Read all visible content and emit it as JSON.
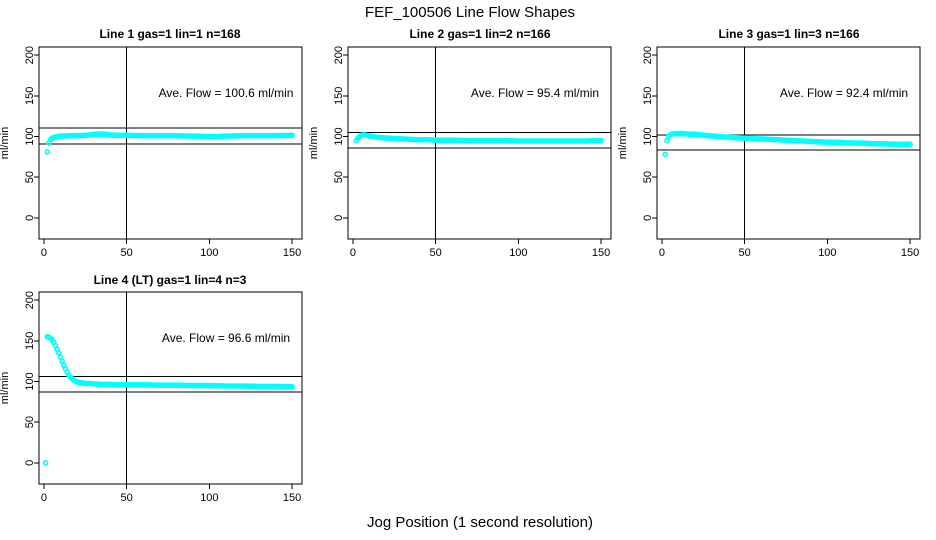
{
  "title": "FEF_100506  Line Flow Shapes",
  "xlabel": "Jog Position (1 second resolution)",
  "colors": {
    "marker": "#00FFFF",
    "axis": "#000000",
    "background": "#FFFFFF"
  },
  "chart_data": [
    {
      "type": "scatter",
      "title": "Line 1 gas=1 lin=1 n=168",
      "annotation": "Ave. Flow =  100.6  ml/min",
      "ave_flow": 100.6,
      "ylabel": "ml/min",
      "x_ticks": [
        0,
        50,
        100,
        150
      ],
      "y_ticks": [
        0,
        50,
        100,
        150,
        200
      ],
      "xlim": [
        -3,
        156
      ],
      "ylim": [
        -26,
        210
      ],
      "grid": false,
      "vline_x": 50,
      "hlines": [
        110.7,
        90.5
      ],
      "marker_color": "#00FFFF",
      "outliers": [
        [
          2,
          81
        ],
        [
          3,
          92
        ]
      ],
      "points": [
        [
          4,
          96
        ],
        [
          5,
          98
        ],
        [
          6,
          99
        ],
        [
          7,
          99.5
        ],
        [
          8,
          100
        ],
        [
          10,
          100.5
        ],
        [
          12,
          100.5
        ],
        [
          15,
          101
        ],
        [
          20,
          101
        ],
        [
          25,
          101.5
        ],
        [
          28,
          102
        ],
        [
          31,
          103
        ],
        [
          34,
          103
        ],
        [
          37,
          103
        ],
        [
          40,
          102
        ],
        [
          44,
          101.5
        ],
        [
          50,
          101.5
        ],
        [
          60,
          101
        ],
        [
          70,
          101
        ],
        [
          80,
          101
        ],
        [
          90,
          100.5
        ],
        [
          100,
          100
        ],
        [
          105,
          100
        ],
        [
          110,
          100.5
        ],
        [
          120,
          101
        ],
        [
          130,
          101
        ],
        [
          140,
          101
        ],
        [
          150,
          101.5
        ]
      ]
    },
    {
      "type": "scatter",
      "title": "Line 2 gas=1 lin=2 n=166",
      "annotation": "Ave. Flow =  95.4  ml/min",
      "ave_flow": 95.4,
      "ylabel": "ml/min",
      "x_ticks": [
        0,
        50,
        100,
        150
      ],
      "y_ticks": [
        0,
        50,
        100,
        150,
        200
      ],
      "xlim": [
        -3,
        156
      ],
      "ylim": [
        -26,
        210
      ],
      "grid": false,
      "vline_x": 50,
      "hlines": [
        104.9,
        85.9
      ],
      "marker_color": "#00FFFF",
      "outliers": [],
      "points": [
        [
          2,
          95
        ],
        [
          3,
          98
        ],
        [
          4,
          100
        ],
        [
          5,
          101.5
        ],
        [
          6,
          102
        ],
        [
          7,
          102
        ],
        [
          8,
          101.5
        ],
        [
          10,
          100.5
        ],
        [
          12,
          100
        ],
        [
          15,
          99
        ],
        [
          18,
          98.5
        ],
        [
          21,
          98
        ],
        [
          25,
          97.5
        ],
        [
          30,
          97
        ],
        [
          35,
          96.5
        ],
        [
          40,
          96
        ],
        [
          45,
          96
        ],
        [
          50,
          95.5
        ],
        [
          60,
          95.5
        ],
        [
          70,
          95
        ],
        [
          80,
          95
        ],
        [
          90,
          95
        ],
        [
          100,
          94.5
        ],
        [
          110,
          94.5
        ],
        [
          120,
          94.5
        ],
        [
          130,
          94.5
        ],
        [
          140,
          94.5
        ],
        [
          150,
          95
        ]
      ]
    },
    {
      "type": "scatter",
      "title": "Line 3 gas=1 lin=3 n=166",
      "annotation": "Ave. Flow =  92.4  ml/min",
      "ave_flow": 92.4,
      "ylabel": "ml/min",
      "x_ticks": [
        0,
        50,
        100,
        150
      ],
      "y_ticks": [
        0,
        50,
        100,
        150,
        200
      ],
      "xlim": [
        -3,
        156
      ],
      "ylim": [
        -26,
        210
      ],
      "grid": false,
      "vline_x": 50,
      "hlines": [
        101.6,
        83.2
      ],
      "marker_color": "#00FFFF",
      "outliers": [
        [
          2,
          78
        ]
      ],
      "points": [
        [
          3,
          95
        ],
        [
          4,
          100
        ],
        [
          5,
          102
        ],
        [
          6,
          103
        ],
        [
          8,
          103.5
        ],
        [
          10,
          103.5
        ],
        [
          13,
          103.5
        ],
        [
          16,
          103
        ],
        [
          19,
          103
        ],
        [
          22,
          102.5
        ],
        [
          25,
          101.5
        ],
        [
          28,
          101
        ],
        [
          31,
          100.5
        ],
        [
          35,
          100
        ],
        [
          40,
          99
        ],
        [
          45,
          98.5
        ],
        [
          50,
          98
        ],
        [
          55,
          97.5
        ],
        [
          60,
          97
        ],
        [
          65,
          96.5
        ],
        [
          70,
          96
        ],
        [
          75,
          95.5
        ],
        [
          80,
          95
        ],
        [
          85,
          94.5
        ],
        [
          90,
          94
        ],
        [
          95,
          93.5
        ],
        [
          100,
          93
        ],
        [
          105,
          93
        ],
        [
          110,
          92.5
        ],
        [
          115,
          92
        ],
        [
          120,
          92
        ],
        [
          125,
          91.5
        ],
        [
          130,
          91
        ],
        [
          135,
          91
        ],
        [
          140,
          90.5
        ],
        [
          145,
          90.5
        ],
        [
          150,
          90.5
        ]
      ]
    },
    {
      "type": "scatter",
      "title": "Line 4 (LT) gas=1 lin=4 n=3",
      "annotation": "Ave. Flow =  96.6  ml/min",
      "ave_flow": 96.6,
      "ylabel": "ml/min",
      "x_ticks": [
        0,
        50,
        100,
        150
      ],
      "y_ticks": [
        0,
        50,
        100,
        150,
        200
      ],
      "xlim": [
        -3,
        156
      ],
      "ylim": [
        -26,
        210
      ],
      "grid": false,
      "vline_x": 50,
      "hlines": [
        106.3,
        86.9
      ],
      "marker_color": "#00FFFF",
      "outliers": [
        [
          1,
          0
        ]
      ],
      "points": [
        [
          2,
          155
        ],
        [
          3,
          154.5
        ],
        [
          4,
          153
        ],
        [
          5,
          151
        ],
        [
          6,
          148
        ],
        [
          7,
          144
        ],
        [
          8,
          139.5
        ],
        [
          9,
          135
        ],
        [
          10,
          130
        ],
        [
          11,
          125
        ],
        [
          12,
          120
        ],
        [
          13,
          115.5
        ],
        [
          14,
          111.5
        ],
        [
          15,
          108
        ],
        [
          16,
          105.5
        ],
        [
          17,
          103.5
        ],
        [
          18,
          102
        ],
        [
          19,
          100.5
        ],
        [
          20,
          99.5
        ],
        [
          22,
          98.5
        ],
        [
          24,
          98
        ],
        [
          26,
          97.5
        ],
        [
          28,
          97.5
        ],
        [
          30,
          97
        ],
        [
          35,
          96.5
        ],
        [
          40,
          96.5
        ],
        [
          45,
          96
        ],
        [
          50,
          96
        ],
        [
          60,
          96
        ],
        [
          70,
          95.5
        ],
        [
          80,
          95.5
        ],
        [
          90,
          95
        ],
        [
          100,
          95
        ],
        [
          110,
          94.5
        ],
        [
          120,
          94.5
        ],
        [
          130,
          94
        ],
        [
          140,
          94
        ],
        [
          150,
          93.5
        ]
      ]
    }
  ]
}
